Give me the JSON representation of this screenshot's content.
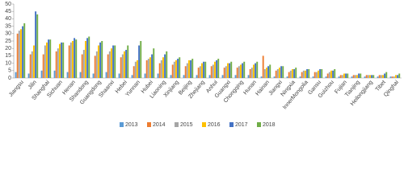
{
  "chart_data": {
    "type": "bar",
    "categories": [
      "Jiangsu",
      "Jilin",
      "Shanghai",
      "Sichuan",
      "Henan",
      "Shandong",
      "Guangdong",
      "Shaanxi",
      "Hebei",
      "Yunnan",
      "Hubei",
      "Liaoning",
      "Xinjiang",
      "Beijing",
      "Zhejiang",
      "Anhui",
      "Guangxi",
      "Chongqing",
      "Hunan",
      "Hainan",
      "Jiangxi",
      "Ningxia",
      "InnerMongolia",
      "Gansu",
      "Guizhou",
      "Fujian",
      "Tianjing",
      "Heilongjiang",
      "Tibet",
      "Qinghai"
    ],
    "series": [
      {
        "name": "2013",
        "color": "#5b9bd5",
        "values": [
          4,
          3,
          5,
          5,
          4,
          4,
          3,
          4,
          3,
          2,
          3,
          3,
          2,
          2,
          2,
          2,
          2,
          2,
          2,
          1,
          1,
          1,
          1,
          1,
          1,
          1,
          1,
          1,
          1,
          1
        ]
      },
      {
        "name": "2014",
        "color": "#ed7d31",
        "values": [
          30,
          16,
          16,
          18,
          22,
          16,
          15,
          16,
          14,
          8,
          12,
          10,
          9,
          8,
          7,
          8,
          7,
          7,
          6,
          15,
          5,
          4,
          4,
          4,
          3,
          2,
          2,
          2,
          2,
          1
        ]
      },
      {
        "name": "2015",
        "color": "#a5a5a5",
        "values": [
          32,
          18,
          22,
          20,
          24,
          19,
          18,
          18,
          16,
          11,
          13,
          12,
          11,
          10,
          8,
          9,
          8,
          8,
          7,
          6,
          6,
          5,
          5,
          4,
          4,
          2,
          2,
          2,
          2,
          1
        ]
      },
      {
        "name": "2016",
        "color": "#ffc000",
        "values": [
          33,
          22,
          24,
          23,
          25,
          25,
          22,
          20,
          18,
          12,
          14,
          14,
          12,
          12,
          10,
          11,
          10,
          9,
          9,
          7,
          7,
          6,
          5,
          5,
          5,
          3,
          2,
          2,
          2,
          2
        ]
      },
      {
        "name": "2017",
        "color": "#4472c4",
        "values": [
          35,
          45,
          26,
          24,
          27,
          27,
          24,
          22,
          19,
          22,
          16,
          16,
          13,
          12,
          11,
          12,
          10,
          10,
          10,
          8,
          8,
          6,
          6,
          6,
          5,
          3,
          3,
          2,
          3,
          2
        ]
      },
      {
        "name": "2018",
        "color": "#70ad47",
        "values": [
          37,
          43,
          26,
          24,
          26,
          28,
          25,
          22,
          22,
          25,
          20,
          18,
          14,
          13,
          11,
          13,
          11,
          11,
          11,
          9,
          8,
          7,
          6,
          6,
          6,
          3,
          3,
          2,
          4,
          3
        ]
      }
    ],
    "ylim": [
      0,
      50
    ],
    "yticks": [
      0,
      5,
      10,
      15,
      20,
      25,
      30,
      35,
      40,
      45,
      50
    ],
    "legend": "bottom"
  }
}
